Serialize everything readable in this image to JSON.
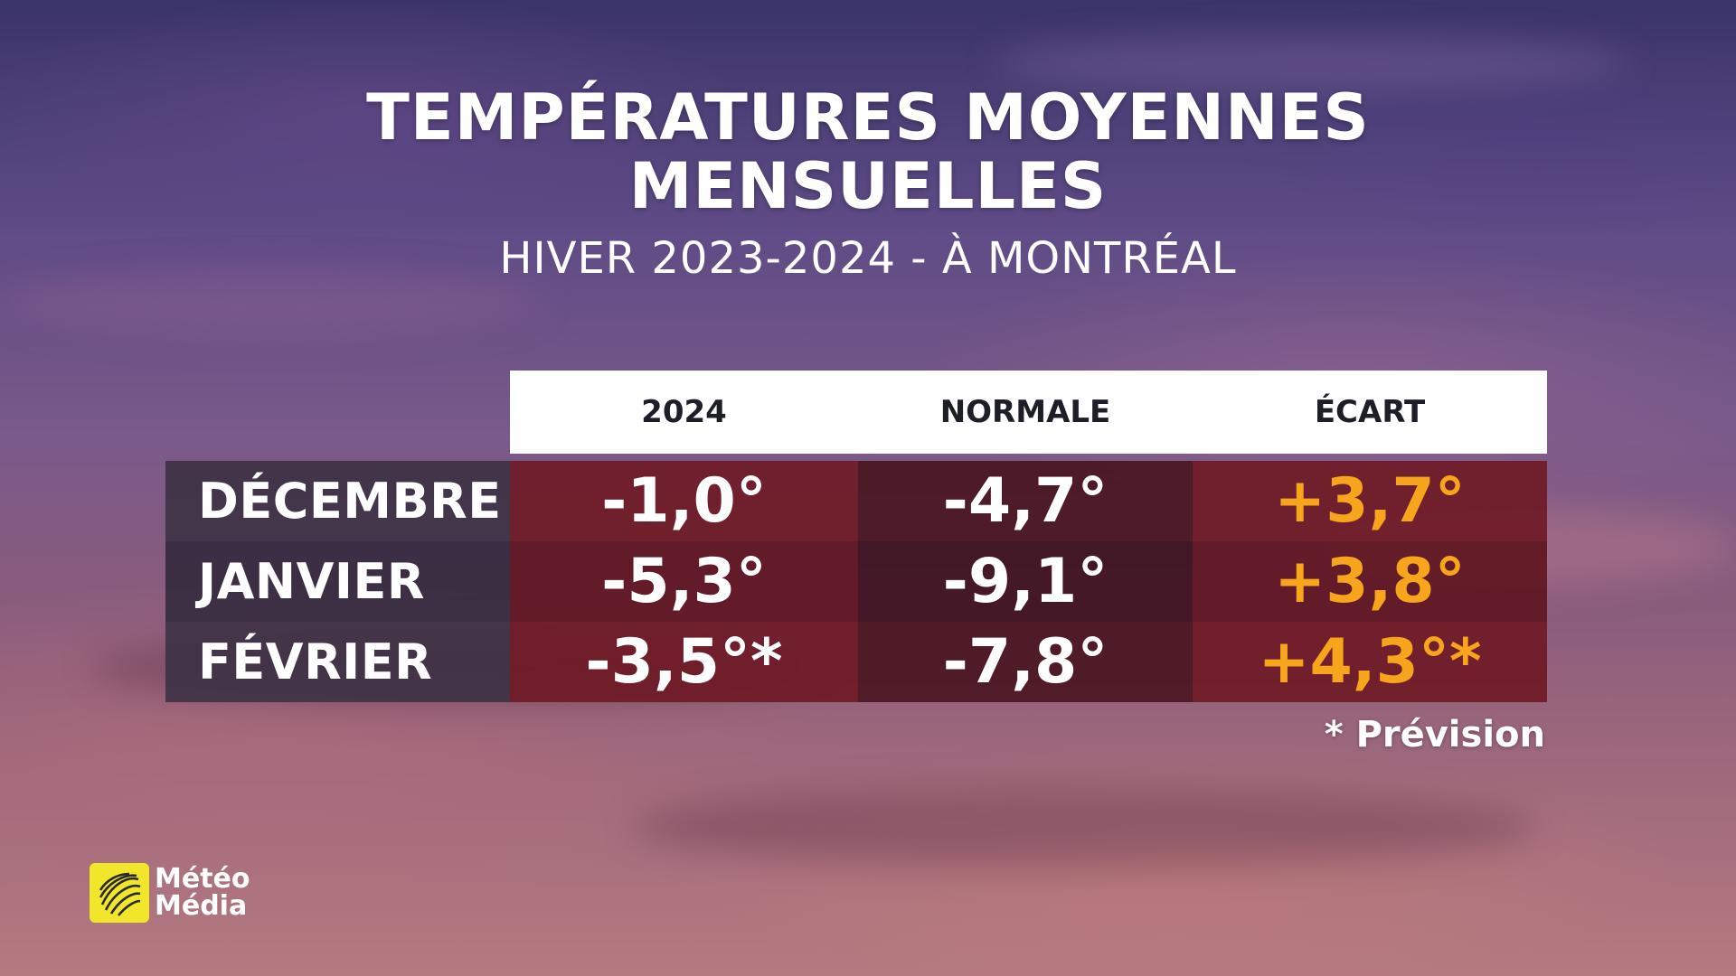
{
  "title": {
    "line1": "TEMPÉRATURES MOYENNES",
    "line2": "MENSUELLES",
    "subtitle": "HIVER 2023-2024 - À MONTRÉAL"
  },
  "table": {
    "headers": [
      "2024",
      "NORMALE",
      "ÉCART"
    ],
    "rows": [
      {
        "month": "DÉCEMBRE",
        "year": "-1,0°",
        "normal": "-4,7°",
        "deviation": "+3,7°"
      },
      {
        "month": "JANVIER",
        "year": "-5,3°",
        "normal": "-9,1°",
        "deviation": "+3,8°"
      },
      {
        "month": "FÉVRIER",
        "year": "-3,5°*",
        "normal": "-7,8°",
        "deviation": "+4,3°*"
      }
    ]
  },
  "note": "* Prévision",
  "logo": {
    "line1": "Météo",
    "line2": "Média"
  },
  "colors": {
    "accent": "#f7a51c",
    "header_bg": "#ffffff",
    "value_bg": "#6e1824",
    "logo_yellow": "#f2e62a"
  },
  "icons": {
    "logo": "meteomedia-globe-icon"
  }
}
